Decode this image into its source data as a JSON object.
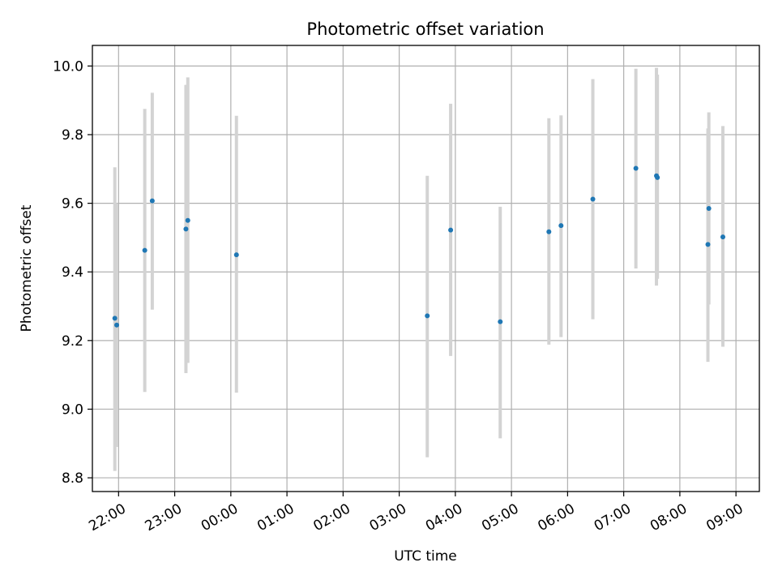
{
  "chart_data": {
    "type": "scatter",
    "title": "Photometric offset variation",
    "xlabel": "UTC time",
    "ylabel": "Photometric offset",
    "ylim": [
      8.76,
      10.06
    ],
    "xlim": [
      "21:32",
      "09:25"
    ],
    "grid": true,
    "y_ticks": [
      8.8,
      9.0,
      9.2,
      9.4,
      9.6,
      9.8,
      10.0
    ],
    "y_tick_labels": [
      "8.8",
      "9.0",
      "9.2",
      "9.4",
      "9.6",
      "9.8",
      "10.0"
    ],
    "x_ticks": [
      "22:00",
      "23:00",
      "00:00",
      "01:00",
      "02:00",
      "03:00",
      "04:00",
      "05:00",
      "06:00",
      "07:00",
      "08:00",
      "09:00"
    ],
    "x_tick_labels": [
      "22:00",
      "23:00",
      "00:00",
      "01:00",
      "02:00",
      "03:00",
      "04:00",
      "05:00",
      "06:00",
      "07:00",
      "08:00",
      "09:00"
    ],
    "marker_color": "#1f77b4",
    "errorbar_color": "#d3d3d3",
    "points": [
      {
        "time": "21:56",
        "y": 9.265,
        "low": 8.82,
        "high": 9.705
      },
      {
        "time": "21:58",
        "y": 9.245,
        "low": 8.89,
        "high": 9.6
      },
      {
        "time": "22:28",
        "y": 9.463,
        "low": 9.05,
        "high": 9.875
      },
      {
        "time": "22:36",
        "y": 9.607,
        "low": 9.29,
        "high": 9.922
      },
      {
        "time": "23:12",
        "y": 9.525,
        "low": 9.105,
        "high": 9.945
      },
      {
        "time": "23:14",
        "y": 9.55,
        "low": 9.135,
        "high": 9.967
      },
      {
        "time": "00:06",
        "y": 9.45,
        "low": 9.048,
        "high": 9.855
      },
      {
        "time": "03:30",
        "y": 9.272,
        "low": 8.86,
        "high": 9.68
      },
      {
        "time": "03:55",
        "y": 9.522,
        "low": 9.155,
        "high": 9.89
      },
      {
        "time": "04:48",
        "y": 9.255,
        "low": 8.915,
        "high": 9.59
      },
      {
        "time": "05:40",
        "y": 9.517,
        "low": 9.188,
        "high": 9.848
      },
      {
        "time": "05:53",
        "y": 9.535,
        "low": 9.21,
        "high": 9.856
      },
      {
        "time": "06:27",
        "y": 9.612,
        "low": 9.262,
        "high": 9.962
      },
      {
        "time": "07:13",
        "y": 9.702,
        "low": 9.41,
        "high": 9.992
      },
      {
        "time": "07:35",
        "y": 9.68,
        "low": 9.36,
        "high": 9.995
      },
      {
        "time": "07:36",
        "y": 9.675,
        "low": 9.38,
        "high": 9.975
      },
      {
        "time": "08:30",
        "y": 9.48,
        "low": 9.138,
        "high": 9.818
      },
      {
        "time": "08:31",
        "y": 9.585,
        "low": 9.305,
        "high": 9.865
      },
      {
        "time": "08:46",
        "y": 9.502,
        "low": 9.182,
        "high": 9.825
      }
    ]
  }
}
